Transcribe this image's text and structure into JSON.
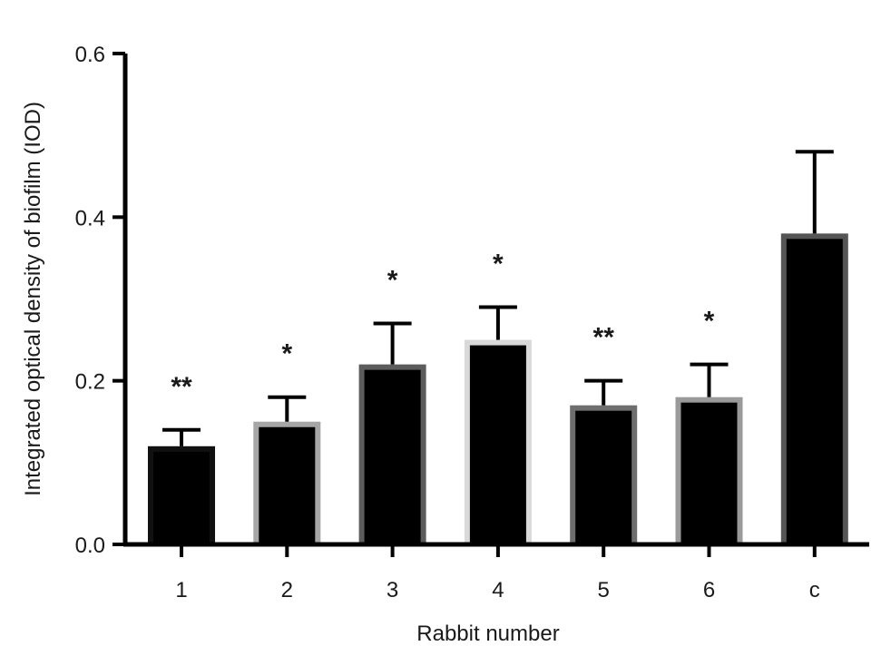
{
  "chart_data": {
    "type": "bar",
    "title": "",
    "xlabel": "Rabbit number",
    "ylabel": "Integrated optical density of biofilm (IOD)",
    "categories": [
      "1",
      "2",
      "3",
      "4",
      "5",
      "6",
      "c"
    ],
    "values": [
      0.12,
      0.15,
      0.22,
      0.25,
      0.17,
      0.18,
      0.38
    ],
    "error_upper": [
      0.14,
      0.18,
      0.27,
      0.29,
      0.2,
      0.22,
      0.48
    ],
    "significance": [
      "**",
      "*",
      "*",
      "*",
      "**",
      "*",
      ""
    ],
    "ylim": [
      0,
      0.6
    ],
    "yticks": [
      "0.0",
      "0.2",
      "0.4",
      "0.6"
    ],
    "grid": false,
    "bar_fill": "#000000",
    "bar_outline_colors": [
      "#111111",
      "#a6a6a6",
      "#5c5c5c",
      "#d9d9d9",
      "#6e6e6e",
      "#9a9a9a",
      "#555555"
    ]
  }
}
